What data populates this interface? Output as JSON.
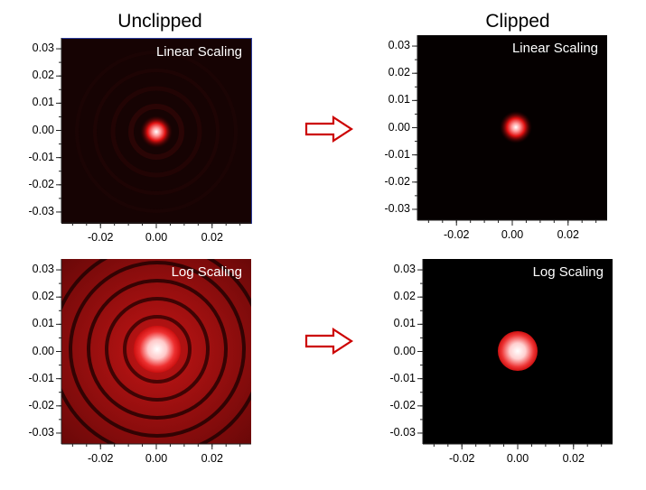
{
  "columns": {
    "left_title": "Unclipped",
    "right_title": "Clipped"
  },
  "panels": [
    {
      "scaling": "Linear Scaling",
      "clipped": false,
      "style": "linear"
    },
    {
      "scaling": "Linear Scaling",
      "clipped": true,
      "style": "linear"
    },
    {
      "scaling": "Log Scaling",
      "clipped": false,
      "style": "log"
    },
    {
      "scaling": "Log Scaling",
      "clipped": true,
      "style": "log"
    }
  ],
  "axes": {
    "y_ticks": [
      "0.03",
      "0.02",
      "0.01",
      "0.00",
      "-0.01",
      "-0.02",
      "-0.03"
    ],
    "x_ticks": [
      "-0.02",
      "0.00",
      "0.02"
    ]
  },
  "colors": {
    "arrow": "#cc0000",
    "background": "#000000",
    "unclipped_log_field": "#7a0a0a"
  }
}
